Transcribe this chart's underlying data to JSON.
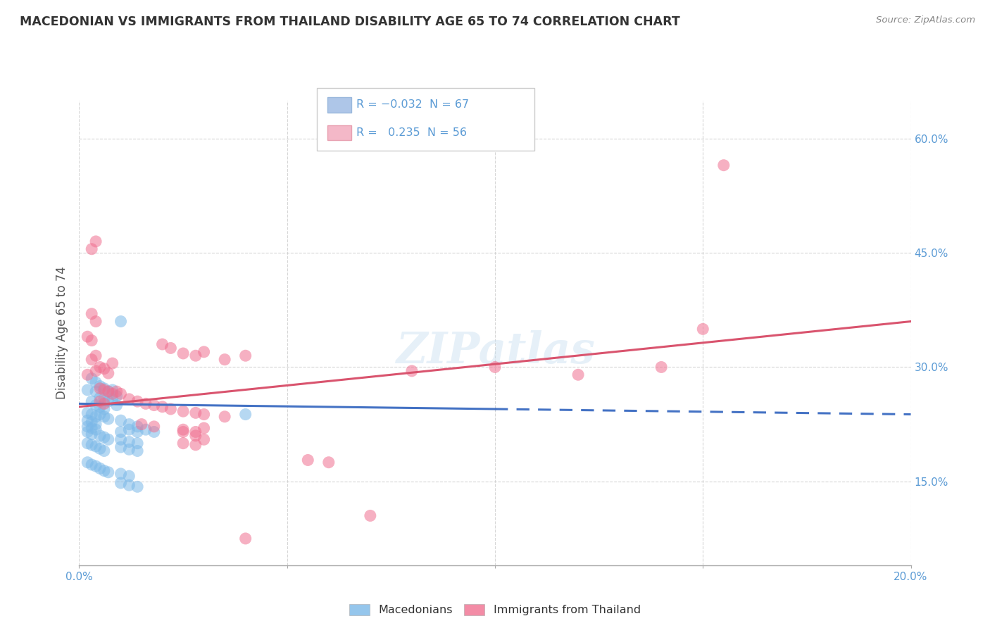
{
  "title": "MACEDONIAN VS IMMIGRANTS FROM THAILAND DISABILITY AGE 65 TO 74 CORRELATION CHART",
  "source_text": "Source: ZipAtlas.com",
  "ylabel": "Disability Age 65 to 74",
  "xlim": [
    0.0,
    0.2
  ],
  "ylim": [
    0.04,
    0.65
  ],
  "right_yticks": [
    0.15,
    0.3,
    0.45,
    0.6
  ],
  "right_yticklabels": [
    "15.0%",
    "30.0%",
    "45.0%",
    "60.0%"
  ],
  "macedonian_color": "#7bb8e8",
  "thailand_color": "#f07090",
  "macedonian_scatter": [
    [
      0.002,
      0.27
    ],
    [
      0.003,
      0.285
    ],
    [
      0.004,
      0.28
    ],
    [
      0.004,
      0.268
    ],
    [
      0.005,
      0.275
    ],
    [
      0.005,
      0.26
    ],
    [
      0.006,
      0.272
    ],
    [
      0.006,
      0.258
    ],
    [
      0.007,
      0.268
    ],
    [
      0.007,
      0.255
    ],
    [
      0.008,
      0.27
    ],
    [
      0.008,
      0.258
    ],
    [
      0.009,
      0.262
    ],
    [
      0.009,
      0.25
    ],
    [
      0.01,
      0.36
    ],
    [
      0.003,
      0.255
    ],
    [
      0.004,
      0.25
    ],
    [
      0.005,
      0.248
    ],
    [
      0.006,
      0.245
    ],
    [
      0.002,
      0.24
    ],
    [
      0.003,
      0.238
    ],
    [
      0.004,
      0.235
    ],
    [
      0.002,
      0.23
    ],
    [
      0.003,
      0.228
    ],
    [
      0.004,
      0.225
    ],
    [
      0.005,
      0.238
    ],
    [
      0.006,
      0.235
    ],
    [
      0.007,
      0.232
    ],
    [
      0.002,
      0.222
    ],
    [
      0.003,
      0.22
    ],
    [
      0.004,
      0.218
    ],
    [
      0.002,
      0.215
    ],
    [
      0.003,
      0.212
    ],
    [
      0.005,
      0.21
    ],
    [
      0.006,
      0.208
    ],
    [
      0.007,
      0.205
    ],
    [
      0.002,
      0.2
    ],
    [
      0.003,
      0.198
    ],
    [
      0.004,
      0.196
    ],
    [
      0.005,
      0.193
    ],
    [
      0.006,
      0.19
    ],
    [
      0.01,
      0.23
    ],
    [
      0.012,
      0.225
    ],
    [
      0.014,
      0.222
    ],
    [
      0.01,
      0.215
    ],
    [
      0.012,
      0.218
    ],
    [
      0.014,
      0.215
    ],
    [
      0.01,
      0.205
    ],
    [
      0.012,
      0.202
    ],
    [
      0.014,
      0.2
    ],
    [
      0.01,
      0.195
    ],
    [
      0.012,
      0.192
    ],
    [
      0.014,
      0.19
    ],
    [
      0.016,
      0.218
    ],
    [
      0.018,
      0.215
    ],
    [
      0.04,
      0.238
    ],
    [
      0.002,
      0.175
    ],
    [
      0.003,
      0.172
    ],
    [
      0.004,
      0.17
    ],
    [
      0.005,
      0.167
    ],
    [
      0.006,
      0.164
    ],
    [
      0.007,
      0.162
    ],
    [
      0.01,
      0.16
    ],
    [
      0.012,
      0.157
    ],
    [
      0.01,
      0.148
    ],
    [
      0.012,
      0.145
    ],
    [
      0.014,
      0.143
    ]
  ],
  "thailand_scatter": [
    [
      0.002,
      0.29
    ],
    [
      0.004,
      0.295
    ],
    [
      0.005,
      0.3
    ],
    [
      0.006,
      0.298
    ],
    [
      0.007,
      0.292
    ],
    [
      0.008,
      0.305
    ],
    [
      0.003,
      0.31
    ],
    [
      0.004,
      0.315
    ],
    [
      0.002,
      0.34
    ],
    [
      0.003,
      0.335
    ],
    [
      0.004,
      0.36
    ],
    [
      0.003,
      0.37
    ],
    [
      0.003,
      0.455
    ],
    [
      0.004,
      0.465
    ],
    [
      0.005,
      0.272
    ],
    [
      0.006,
      0.27
    ],
    [
      0.007,
      0.268
    ],
    [
      0.008,
      0.265
    ],
    [
      0.009,
      0.268
    ],
    [
      0.01,
      0.265
    ],
    [
      0.005,
      0.255
    ],
    [
      0.006,
      0.252
    ],
    [
      0.02,
      0.33
    ],
    [
      0.022,
      0.325
    ],
    [
      0.025,
      0.318
    ],
    [
      0.028,
      0.315
    ],
    [
      0.03,
      0.32
    ],
    [
      0.035,
      0.31
    ],
    [
      0.04,
      0.315
    ],
    [
      0.012,
      0.258
    ],
    [
      0.014,
      0.255
    ],
    [
      0.016,
      0.252
    ],
    [
      0.018,
      0.25
    ],
    [
      0.02,
      0.248
    ],
    [
      0.022,
      0.245
    ],
    [
      0.025,
      0.242
    ],
    [
      0.028,
      0.24
    ],
    [
      0.03,
      0.238
    ],
    [
      0.035,
      0.235
    ],
    [
      0.015,
      0.225
    ],
    [
      0.018,
      0.222
    ],
    [
      0.025,
      0.218
    ],
    [
      0.028,
      0.215
    ],
    [
      0.03,
      0.22
    ],
    [
      0.025,
      0.215
    ],
    [
      0.028,
      0.21
    ],
    [
      0.03,
      0.205
    ],
    [
      0.025,
      0.2
    ],
    [
      0.028,
      0.198
    ],
    [
      0.08,
      0.295
    ],
    [
      0.1,
      0.3
    ],
    [
      0.12,
      0.29
    ],
    [
      0.14,
      0.3
    ],
    [
      0.15,
      0.35
    ],
    [
      0.155,
      0.565
    ],
    [
      0.055,
      0.178
    ],
    [
      0.06,
      0.175
    ],
    [
      0.07,
      0.105
    ],
    [
      0.04,
      0.075
    ]
  ],
  "blue_line_solid": {
    "x": [
      0.0,
      0.1
    ],
    "y": [
      0.252,
      0.245
    ]
  },
  "blue_line_dash": {
    "x": [
      0.1,
      0.2
    ],
    "y": [
      0.245,
      0.238
    ]
  },
  "pink_line": {
    "x": [
      0.0,
      0.2
    ],
    "y": [
      0.248,
      0.36
    ]
  },
  "watermark": "ZIPatlas",
  "background_color": "#ffffff",
  "grid_color": "#cccccc",
  "title_color": "#333333",
  "axis_color": "#5b9bd5",
  "ylabel_color": "#555555"
}
